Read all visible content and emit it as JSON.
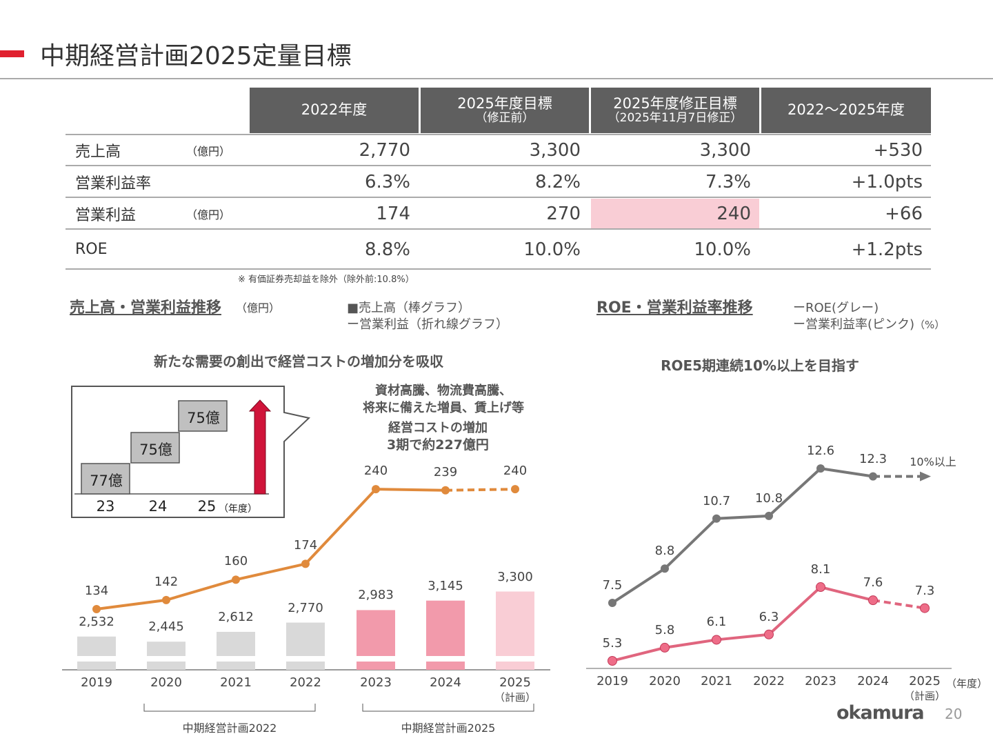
{
  "title": "中期経営計画2025定量目標",
  "table": {
    "headers": [
      {
        "l1": "2022年度",
        "l2": ""
      },
      {
        "l1": "2025年度目標",
        "l2": "（修正前）"
      },
      {
        "l1": "2025年度修正目標",
        "l2": "（2025年11月7日修正）"
      },
      {
        "l1": "2022～2025年度",
        "l2": ""
      }
    ],
    "rows": [
      {
        "label": "売上高",
        "unit": "（億円）",
        "values": [
          "2,770",
          "3,300",
          "3,300",
          "+530"
        ]
      },
      {
        "label": "営業利益率",
        "unit": "",
        "values": [
          "6.3%",
          "8.2%",
          "7.3%",
          "+1.0pts"
        ]
      },
      {
        "label": "営業利益",
        "unit": "（億円）",
        "values": [
          "174",
          "270",
          "240",
          "+66"
        ],
        "highlight": 2
      },
      {
        "label": "ROE",
        "unit": "",
        "values": [
          "8.8%",
          "10.0%",
          "10.0%",
          "+1.2pts"
        ]
      }
    ],
    "note": "※ 有価証券売却益を除外（除外前:10.8%）",
    "highlight_color": "#f9cdd5"
  },
  "left": {
    "title": "売上高・営業利益推移",
    "unit": "（億円）",
    "legend_bar": "■売上高（棒グラフ）",
    "legend_line": "ー営業利益（折れ線グラフ）",
    "headline": "新たな需要の創出で経営コストの増加分を吸収",
    "callout": {
      "steps": [
        "77億",
        "75億",
        "75億"
      ],
      "years": [
        "23",
        "24",
        "25"
      ],
      "year_unit": "（年度）"
    },
    "cost_text1": "資材高騰、物流費高騰、",
    "cost_text2": "将来に備えた増員、賃上げ等",
    "cost_text3": "経営コストの増加",
    "cost_text4": "3期で約227億円",
    "plan_labels": [
      "中期経営計画2022",
      "中期経営計画2025"
    ],
    "plan_sub": "（計画）"
  },
  "right": {
    "title": "ROE・営業利益率推移",
    "legend_roe": "ーROE(グレー)",
    "legend_opm": "ー営業利益率(ピンク)",
    "legend_unit": "（%）",
    "headline": "ROE5期連続10%以上を目指す",
    "target_label": "10%以上",
    "year_unit": "（年度）",
    "plan_sub": "（計画）"
  },
  "footer": {
    "logo": "okamura",
    "page": "20"
  },
  "chart_data": [
    {
      "type": "bar",
      "categories": [
        "2019",
        "2020",
        "2021",
        "2022",
        "2023",
        "2024",
        "2025"
      ],
      "series": [
        {
          "name": "売上高",
          "values": [
            2532,
            2445,
            2612,
            2770,
            2983,
            3145,
            3300
          ],
          "colors": [
            "#d9d9d9",
            "#d9d9d9",
            "#d9d9d9",
            "#d9d9d9",
            "#f29aab",
            "#f29aab",
            "#f9cdd5"
          ]
        },
        {
          "name": "営業利益",
          "type": "line",
          "values": [
            134,
            142,
            160,
            174,
            240,
            239,
            240
          ],
          "color": "#e08a3c",
          "dashed_from": "2024"
        }
      ],
      "value_labels": [
        "2,532",
        "2,445",
        "2,612",
        "2,770",
        "2,983",
        "3,145",
        "3,300"
      ],
      "axis_break": true
    },
    {
      "type": "line",
      "categories": [
        "2019",
        "2020",
        "2021",
        "2022",
        "2023",
        "2024",
        "2025"
      ],
      "series": [
        {
          "name": "ROE",
          "values": [
            7.5,
            8.8,
            10.7,
            10.8,
            12.6,
            12.3,
            null
          ],
          "color": "#777777",
          "target": "10%以上"
        },
        {
          "name": "営業利益率",
          "values": [
            5.3,
            5.8,
            6.1,
            6.3,
            8.1,
            7.6,
            7.3
          ],
          "color": "#e0657e",
          "dashed_from": "2024"
        }
      ]
    }
  ]
}
